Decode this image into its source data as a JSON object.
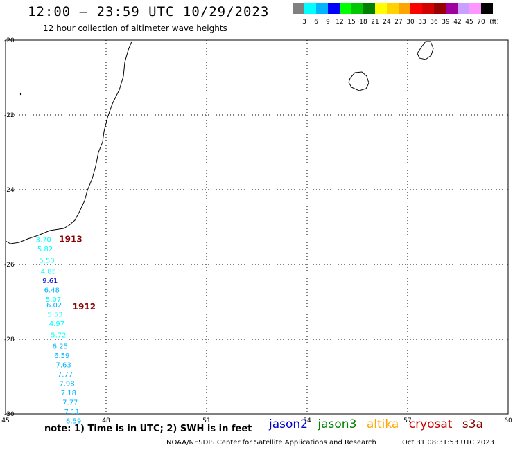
{
  "header": {
    "title": "12:00 – 23:59 UTC 10/29/2023",
    "subtitle": "12 hour collection of altimeter wave heights"
  },
  "colorbar": {
    "unit": "(ft)",
    "labels": [
      "3",
      "6",
      "9",
      "12",
      "15",
      "18",
      "21",
      "24",
      "27",
      "30",
      "33",
      "36",
      "39",
      "42",
      "45",
      "70"
    ],
    "colors": [
      "#808080",
      "#00ffff",
      "#00b4ff",
      "#0000ff",
      "#00ff00",
      "#00c800",
      "#008000",
      "#ffff00",
      "#ffd200",
      "#ffa500",
      "#ff0000",
      "#d20000",
      "#960000",
      "#a000a0",
      "#c8a0ff",
      "#ff96ff",
      "#000000"
    ]
  },
  "map": {
    "lon_range": [
      45,
      60
    ],
    "lat_range": [
      -30,
      -20
    ],
    "lon_ticks": [
      "45",
      "48",
      "51",
      "54",
      "57",
      "60"
    ],
    "lat_ticks": [
      "-20",
      "-22",
      "-24",
      "-26",
      "-28",
      "-30"
    ]
  },
  "passes": [
    {
      "label": "1913",
      "color": "#8b0000",
      "lon": 46.6,
      "lat": -25.4
    },
    {
      "label": "1912",
      "color": "#8b0000",
      "lon": 47.0,
      "lat": -27.2
    }
  ],
  "measurements": [
    {
      "value": "3.70",
      "lon": 45.9,
      "lat": -25.4,
      "color": "#00ffff"
    },
    {
      "value": "5.82",
      "lon": 45.95,
      "lat": -25.65,
      "color": "#00ffff"
    },
    {
      "value": "5.50",
      "lon": 46.0,
      "lat": -25.95,
      "color": "#00ffff"
    },
    {
      "value": "4.85",
      "lon": 46.05,
      "lat": -26.25,
      "color": "#00ffff"
    },
    {
      "value": "9.61",
      "lon": 46.1,
      "lat": -26.5,
      "color": "#0000cc"
    },
    {
      "value": "6.48",
      "lon": 46.15,
      "lat": -26.75,
      "color": "#00b4ff"
    },
    {
      "value": "5.07",
      "lon": 46.2,
      "lat": -27.0,
      "color": "#00ffff"
    },
    {
      "value": "6.02",
      "lon": 46.22,
      "lat": -27.15,
      "color": "#00b4ff"
    },
    {
      "value": "5.53",
      "lon": 46.25,
      "lat": -27.4,
      "color": "#00ffff"
    },
    {
      "value": "4.97",
      "lon": 46.3,
      "lat": -27.65,
      "color": "#00ffff"
    },
    {
      "value": "5.72",
      "lon": 46.35,
      "lat": -27.95,
      "color": "#00ffff"
    },
    {
      "value": "6.25",
      "lon": 46.4,
      "lat": -28.25,
      "color": "#00b4ff"
    },
    {
      "value": "6.59",
      "lon": 46.45,
      "lat": -28.5,
      "color": "#00b4ff"
    },
    {
      "value": "7.63",
      "lon": 46.5,
      "lat": -28.75,
      "color": "#00b4ff"
    },
    {
      "value": "7.77",
      "lon": 46.55,
      "lat": -29.0,
      "color": "#00b4ff"
    },
    {
      "value": "7.98",
      "lon": 46.6,
      "lat": -29.25,
      "color": "#00b4ff"
    },
    {
      "value": "7.18",
      "lon": 46.65,
      "lat": -29.5,
      "color": "#00b4ff"
    },
    {
      "value": "7.77",
      "lon": 46.7,
      "lat": -29.75,
      "color": "#00b4ff"
    },
    {
      "value": "7.11",
      "lon": 46.75,
      "lat": -30.0,
      "color": "#00b4ff"
    },
    {
      "value": "6.59",
      "lon": 46.8,
      "lat": -30.25,
      "color": "#00b4ff"
    }
  ],
  "note": "note:  1) Time is in UTC;  2) SWH is in feet",
  "legend": [
    {
      "name": "jason2",
      "color": "#0000cc"
    },
    {
      "name": "jason3",
      "color": "#008000"
    },
    {
      "name": "altika",
      "color": "#ffa500"
    },
    {
      "name": "cryosat",
      "color": "#cc0000"
    },
    {
      "name": "s3a",
      "color": "#8b0000"
    }
  ],
  "footer": {
    "left": "NOAA/NESDIS Center for Satellite Applications and Research",
    "right": "Oct 31 08:31:53 UTC 2023"
  }
}
